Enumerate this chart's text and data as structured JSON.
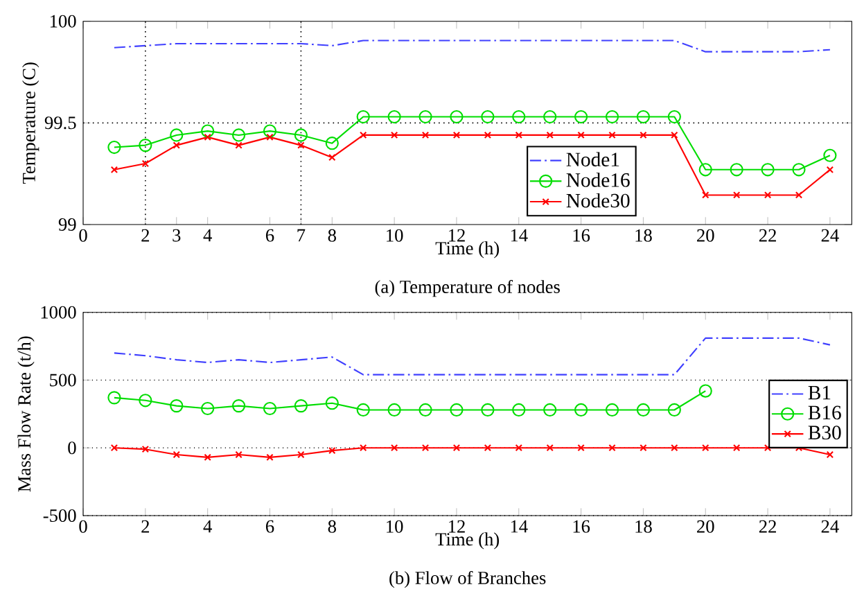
{
  "chart_data": [
    {
      "type": "line",
      "subtitle": "(a) Temperature of nodes",
      "xlabel": "Time (h)",
      "ylabel": "Temperature (C)",
      "x": [
        1,
        2,
        3,
        4,
        5,
        6,
        7,
        8,
        9,
        10,
        11,
        12,
        13,
        14,
        15,
        16,
        17,
        18,
        19,
        20,
        21,
        22,
        23,
        24
      ],
      "series": [
        {
          "name": "Node1",
          "color": "#4040ff",
          "marker": "none",
          "line_style": "dashdot",
          "values": [
            99.87,
            99.88,
            99.89,
            99.89,
            99.89,
            99.89,
            99.89,
            99.88,
            99.905,
            99.905,
            99.905,
            99.905,
            99.905,
            99.905,
            99.905,
            99.905,
            99.905,
            99.905,
            99.905,
            99.85,
            99.85,
            99.85,
            99.85,
            99.86
          ]
        },
        {
          "name": "Node16",
          "color": "#00dd00",
          "marker": "circle",
          "line_style": "solid",
          "values": [
            99.38,
            99.39,
            99.44,
            99.46,
            99.44,
            99.46,
            99.44,
            99.4,
            99.53,
            99.53,
            99.53,
            99.53,
            99.53,
            99.53,
            99.53,
            99.53,
            99.53,
            99.53,
            99.53,
            99.27,
            99.27,
            99.27,
            99.27,
            99.34
          ]
        },
        {
          "name": "Node30",
          "color": "#ff0000",
          "marker": "cross",
          "line_style": "solid",
          "values": [
            99.27,
            99.3,
            99.39,
            99.43,
            99.39,
            99.43,
            99.39,
            99.33,
            99.44,
            99.44,
            99.44,
            99.44,
            99.44,
            99.44,
            99.44,
            99.44,
            99.44,
            99.44,
            99.44,
            99.145,
            99.145,
            99.145,
            99.145,
            99.27
          ]
        }
      ],
      "xlim": [
        0,
        24.7
      ],
      "xticks": [
        0,
        2,
        3,
        4,
        6,
        7,
        8,
        10,
        12,
        14,
        16,
        18,
        20,
        22,
        24
      ],
      "ylim": [
        99,
        100
      ],
      "yticks": [
        99,
        99.5,
        100
      ],
      "ref_lines": [
        {
          "axis": "x",
          "value": 2,
          "line_style": "dotted"
        },
        {
          "axis": "x",
          "value": 7,
          "line_style": "dotted"
        },
        {
          "axis": "y",
          "value": 99.5,
          "line_style": "dotted"
        }
      ],
      "legend": "bottom right"
    },
    {
      "type": "line",
      "subtitle": "(b) Flow of Branches",
      "xlabel": "Time (h)",
      "ylabel": "Mass Flow Rate (t/h)",
      "x": [
        1,
        2,
        3,
        4,
        5,
        6,
        7,
        8,
        9,
        10,
        11,
        12,
        13,
        14,
        15,
        16,
        17,
        18,
        19,
        20,
        21,
        22,
        23,
        24
      ],
      "series": [
        {
          "name": "B1",
          "color": "#4040ff",
          "marker": "none",
          "line_style": "dashdot",
          "values": [
            700,
            680,
            650,
            630,
            650,
            630,
            650,
            670,
            540,
            540,
            540,
            540,
            540,
            540,
            540,
            540,
            540,
            540,
            540,
            810,
            810,
            810,
            810,
            760
          ]
        },
        {
          "name": "B16",
          "color": "#00dd00",
          "marker": "circle",
          "line_style": "solid",
          "values": [
            370,
            350,
            310,
            290,
            310,
            290,
            310,
            330,
            280,
            280,
            280,
            280,
            280,
            280,
            280,
            280,
            280,
            280,
            280,
            420,
            null,
            null,
            null,
            null
          ]
        },
        {
          "name": "B30",
          "color": "#ff0000",
          "marker": "cross",
          "line_style": "solid",
          "values": [
            0,
            -10,
            -50,
            -70,
            -50,
            -70,
            -50,
            -20,
            0,
            0,
            0,
            0,
            0,
            0,
            0,
            0,
            0,
            0,
            0,
            0,
            0,
            0,
            0,
            -50
          ]
        }
      ],
      "xlim": [
        0,
        24.7
      ],
      "xticks": [
        0,
        2,
        4,
        6,
        8,
        10,
        12,
        14,
        16,
        18,
        20,
        22,
        24
      ],
      "ylim": [
        -500,
        1000
      ],
      "yticks": [
        -500,
        0,
        500,
        1000
      ],
      "grid": "y",
      "legend": "right"
    }
  ]
}
